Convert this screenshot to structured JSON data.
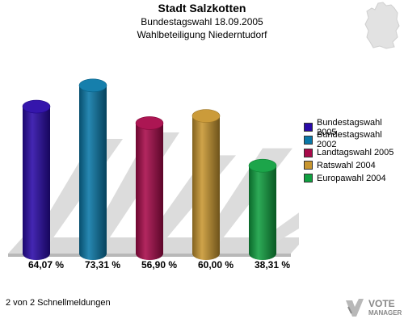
{
  "header": {
    "title": "Stadt Salzkotten",
    "subtitle1": "Bundestagswahl 18.09.2005",
    "subtitle2": "Wahlbeteiligung Niederntudorf"
  },
  "chart_data": {
    "type": "bar",
    "categories": [
      "Bundestagswahl 2005",
      "Bundestagswahl 2002",
      "Landtagswahl 2005",
      "Ratswahl 2004",
      "Europawahl 2004"
    ],
    "values": [
      64.07,
      73.31,
      56.9,
      60.0,
      38.31
    ],
    "value_labels": [
      "64,07 %",
      "73,31 %",
      "56,90 %",
      "60,00 %",
      "38,31 %"
    ],
    "colors": [
      "#2a0aa8",
      "#0a78a8",
      "#a80a4a",
      "#c89630",
      "#10a040"
    ],
    "ylim": [
      0,
      100
    ],
    "legend_position": "right",
    "style": "3d-cylinder"
  },
  "footer": {
    "page_info": "2 von 2 Schnellmeldungen"
  },
  "logo": {
    "line1": "VOTE",
    "line2": "MANAGER"
  }
}
